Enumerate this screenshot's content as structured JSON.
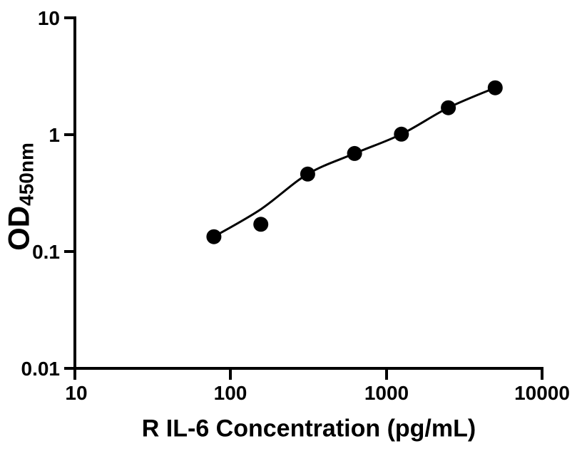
{
  "figure": {
    "background_color": "#ffffff",
    "ink_color": "#000000"
  },
  "chart_data": {
    "type": "scatter",
    "title": "",
    "xlabel": "R IL-6 Concentration (pg/mL)",
    "ylabel_main": "OD",
    "ylabel_subscript": "450nm",
    "x_scale": "log",
    "y_scale": "log",
    "xlim": [
      10,
      10000
    ],
    "ylim": [
      0.01,
      10
    ],
    "grid": false,
    "legend": "none",
    "x_ticks": {
      "values": [
        10,
        100,
        1000,
        10000
      ],
      "labels": [
        "10",
        "100",
        "1000",
        "10000"
      ]
    },
    "y_ticks": {
      "values": [
        10,
        1,
        0.1,
        0.01
      ],
      "labels": [
        "10",
        "1",
        "0.1",
        "0.01"
      ]
    },
    "series": [
      {
        "name": "standard-points",
        "marker": "circle",
        "marker_color": "#000000",
        "points": [
          {
            "x": 78.1,
            "od": 0.134
          },
          {
            "x": 156.3,
            "od": 0.171
          },
          {
            "x": 312.5,
            "od": 0.46
          },
          {
            "x": 625,
            "od": 0.69
          },
          {
            "x": 1250,
            "od": 1.01
          },
          {
            "x": 2500,
            "od": 1.7
          },
          {
            "x": 5000,
            "od": 2.52
          }
        ]
      }
    ],
    "fit_curve": {
      "name": "fitted-standard-curve",
      "color": "#000000",
      "points": [
        {
          "x": 78.1,
          "od": 0.134
        },
        {
          "x": 156.3,
          "od": 0.23
        },
        {
          "x": 312.5,
          "od": 0.46
        },
        {
          "x": 625,
          "od": 0.69
        },
        {
          "x": 1250,
          "od": 1.01
        },
        {
          "x": 2500,
          "od": 1.7
        },
        {
          "x": 5000,
          "od": 2.52
        }
      ]
    }
  }
}
